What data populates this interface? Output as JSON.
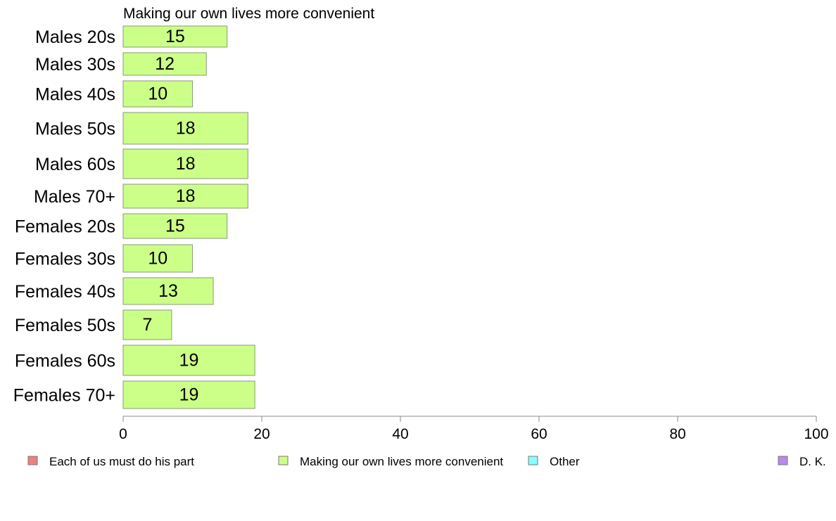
{
  "chart_data": {
    "type": "bar",
    "orientation": "horizontal",
    "title": "Making our own lives more convenient",
    "categories": [
      "Males 20s",
      "Males 30s",
      "Males 40s",
      "Males 50s",
      "Males 60s",
      "Males 70+",
      "Females 20s",
      "Females 30s",
      "Females 40s",
      "Females 50s",
      "Females 60s",
      "Females 70+"
    ],
    "series": [
      {
        "name": "Making our own lives more convenient",
        "values": [
          15,
          12,
          10,
          18,
          18,
          18,
          15,
          10,
          13,
          7,
          19,
          19
        ],
        "color": "#ccff88"
      }
    ],
    "data_labels": [
      "15",
      "12",
      "10",
      "18",
      "18",
      "18",
      "15",
      "10",
      "13",
      "7",
      "19",
      "19"
    ],
    "xlim": [
      0,
      100
    ],
    "x_ticks": [
      "0",
      "20",
      "40",
      "60",
      "80",
      "100"
    ],
    "grid": false,
    "legend": {
      "position": "bottom",
      "items": [
        {
          "label": "Each of us must do his part",
          "color": "#f08080"
        },
        {
          "label": "Making our own lives more convenient",
          "color": "#ccff88"
        },
        {
          "label": "Other",
          "color": "#88ffff"
        },
        {
          "label": "D. K.",
          "color": "#bb88ee"
        }
      ]
    },
    "colors": {
      "bar_stroke": "#8a9a7a",
      "axis": "#888888"
    }
  }
}
